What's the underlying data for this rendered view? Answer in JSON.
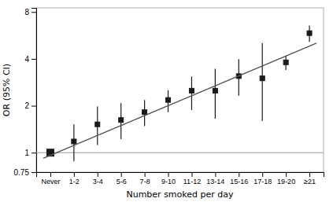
{
  "chart_data": {
    "type": "scatter",
    "xlabel": "Number smoked per day",
    "ylabel": "OR (95% CI)",
    "categories": [
      "Never",
      "1-2",
      "3-4",
      "5-6",
      "7-8",
      "9-10",
      "11-12",
      "13-14",
      "15-16",
      "17-18",
      "19-20",
      "≥21"
    ],
    "series": [
      {
        "type": "scatter",
        "marker": "square",
        "color": "#1a1a1a",
        "values": [
          1.0,
          1.18,
          1.52,
          1.62,
          1.82,
          2.18,
          2.5,
          2.5,
          3.1,
          3.0,
          3.8,
          5.85
        ],
        "ci_low": [
          1.0,
          0.88,
          1.12,
          1.22,
          1.48,
          1.82,
          1.88,
          1.65,
          2.32,
          1.6,
          3.4,
          5.15
        ],
        "ci_high": [
          1.0,
          1.52,
          1.98,
          2.08,
          2.18,
          2.52,
          3.08,
          3.45,
          3.98,
          5.05,
          4.18,
          6.55
        ]
      },
      {
        "type": "line",
        "line_style": "solid",
        "color": "#555555",
        "x": [
          -0.3,
          11.3
        ],
        "values": [
          0.92,
          5.05
        ]
      }
    ],
    "ref_line": 1.0,
    "log": "y",
    "grid": false,
    "xlim": [
      -0.6,
      11.6
    ],
    "ylim": [
      0.75,
      8.5
    ],
    "yticks": [
      0.75,
      1,
      2,
      4,
      8
    ]
  }
}
